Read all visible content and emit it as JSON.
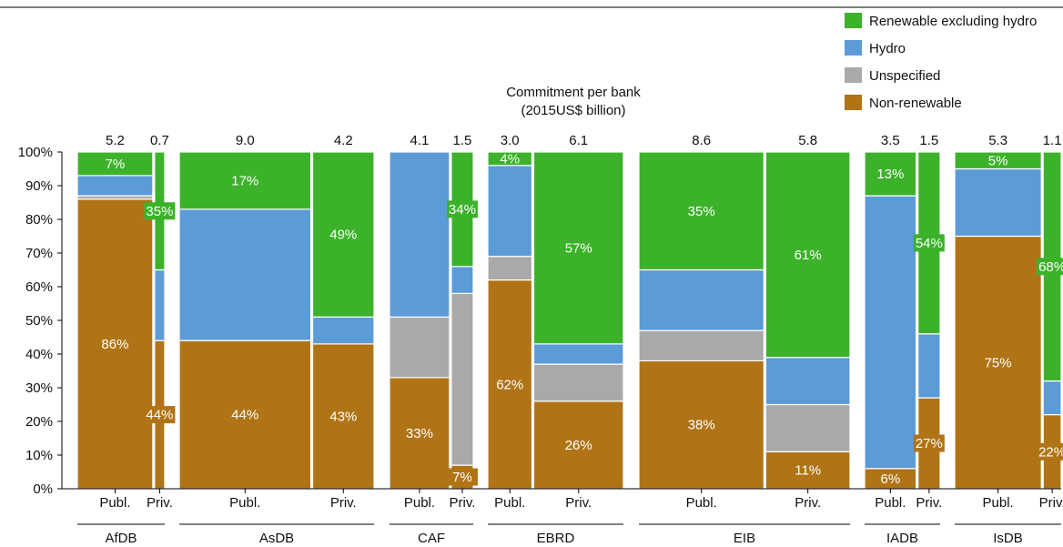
{
  "chart_data": {
    "type": "bar",
    "subtype": "stacked-marimekko",
    "title": "",
    "totals_caption": [
      "Commitment per bank",
      "(2015US$ billion)"
    ],
    "ylim": [
      0,
      100
    ],
    "yticks": [
      "0%",
      "10%",
      "20%",
      "30%",
      "40%",
      "50%",
      "60%",
      "70%",
      "80%",
      "90%",
      "100%"
    ],
    "legend": {
      "placement": "top-right",
      "entries": [
        {
          "key": "renew",
          "name": "Renewable excluding hydro",
          "color": "#3cb22a"
        },
        {
          "key": "hydro",
          "name": "Hydro",
          "color": "#5b9bd8"
        },
        {
          "key": "unspec",
          "name": "Unspecified",
          "color": "#a9a9a9"
        },
        {
          "key": "nonrenew",
          "name": "Non-renewable",
          "color": "#b07416"
        }
      ]
    },
    "banks": [
      {
        "name": "AfDB",
        "bars": [
          {
            "type": "Publ.",
            "total": "5.2",
            "width": 5.2,
            "nonrenew": 86,
            "unspec": 1,
            "hydro": 6,
            "renew": 7,
            "labels": {
              "nonrenew": "86%",
              "renew": "7%"
            }
          },
          {
            "type": "Priv.",
            "total": "0.7",
            "width": 0.7,
            "nonrenew": 44,
            "unspec": 0,
            "hydro": 21,
            "renew": 35,
            "labels": {
              "nonrenew": "44%",
              "renew": "35%"
            }
          }
        ]
      },
      {
        "name": "AsDB",
        "bars": [
          {
            "type": "Publ.",
            "total": "9.0",
            "width": 9.0,
            "nonrenew": 44,
            "unspec": 0,
            "hydro": 39,
            "renew": 17,
            "labels": {
              "nonrenew": "44%",
              "renew": "17%"
            }
          },
          {
            "type": "Priv.",
            "total": "4.2",
            "width": 4.2,
            "nonrenew": 43,
            "unspec": 0,
            "hydro": 8,
            "renew": 49,
            "labels": {
              "nonrenew": "43%",
              "renew": "49%"
            }
          }
        ]
      },
      {
        "name": "CAF",
        "bars": [
          {
            "type": "Publ.",
            "total": "4.1",
            "width": 4.1,
            "nonrenew": 33,
            "unspec": 18,
            "hydro": 49,
            "renew": 0,
            "labels": {
              "nonrenew": "33%"
            }
          },
          {
            "type": "Priv.",
            "total": "1.5",
            "width": 1.5,
            "nonrenew": 7,
            "unspec": 51,
            "hydro": 8,
            "renew": 34,
            "labels": {
              "nonrenew": "7%",
              "renew": "34%"
            }
          }
        ]
      },
      {
        "name": "EBRD",
        "bars": [
          {
            "type": "Publ.",
            "total": "3.0",
            "width": 3.0,
            "nonrenew": 62,
            "unspec": 7,
            "hydro": 27,
            "renew": 4,
            "labels": {
              "nonrenew": "62%",
              "renew": "4%"
            }
          },
          {
            "type": "Priv.",
            "total": "6.1",
            "width": 6.1,
            "nonrenew": 26,
            "unspec": 11,
            "hydro": 6,
            "renew": 57,
            "labels": {
              "nonrenew": "26%",
              "renew": "57%"
            }
          }
        ]
      },
      {
        "name": "EIB",
        "bars": [
          {
            "type": "Publ.",
            "total": "8.6",
            "width": 8.6,
            "nonrenew": 38,
            "unspec": 9,
            "hydro": 18,
            "renew": 35,
            "labels": {
              "nonrenew": "38%",
              "renew": "35%"
            }
          },
          {
            "type": "Priv.",
            "total": "5.8",
            "width": 5.8,
            "nonrenew": 11,
            "unspec": 14,
            "hydro": 14,
            "renew": 61,
            "labels": {
              "nonrenew": "11%",
              "renew": "61%"
            }
          }
        ]
      },
      {
        "name": "IADB",
        "bars": [
          {
            "type": "Publ.",
            "total": "3.5",
            "width": 3.5,
            "nonrenew": 6,
            "unspec": 0,
            "hydro": 81,
            "renew": 13,
            "labels": {
              "nonrenew": "6%",
              "renew": "13%"
            }
          },
          {
            "type": "Priv.",
            "total": "1.5",
            "width": 1.5,
            "nonrenew": 27,
            "unspec": 0,
            "hydro": 19,
            "renew": 54,
            "labels": {
              "nonrenew": "27%",
              "renew": "54%"
            }
          }
        ]
      },
      {
        "name": "IsDB",
        "bars": [
          {
            "type": "Publ.",
            "total": "5.3",
            "width": 5.3,
            "nonrenew": 75,
            "unspec": 0,
            "hydro": 20,
            "renew": 5,
            "labels": {
              "nonrenew": "75%",
              "renew": "5%"
            }
          },
          {
            "type": "Priv.",
            "total": "1.1",
            "width": 1.1,
            "nonrenew": 22,
            "unspec": 0,
            "hydro": 10,
            "renew": 68,
            "labels": {
              "nonrenew": "22%",
              "renew": "68%"
            }
          }
        ]
      }
    ]
  }
}
